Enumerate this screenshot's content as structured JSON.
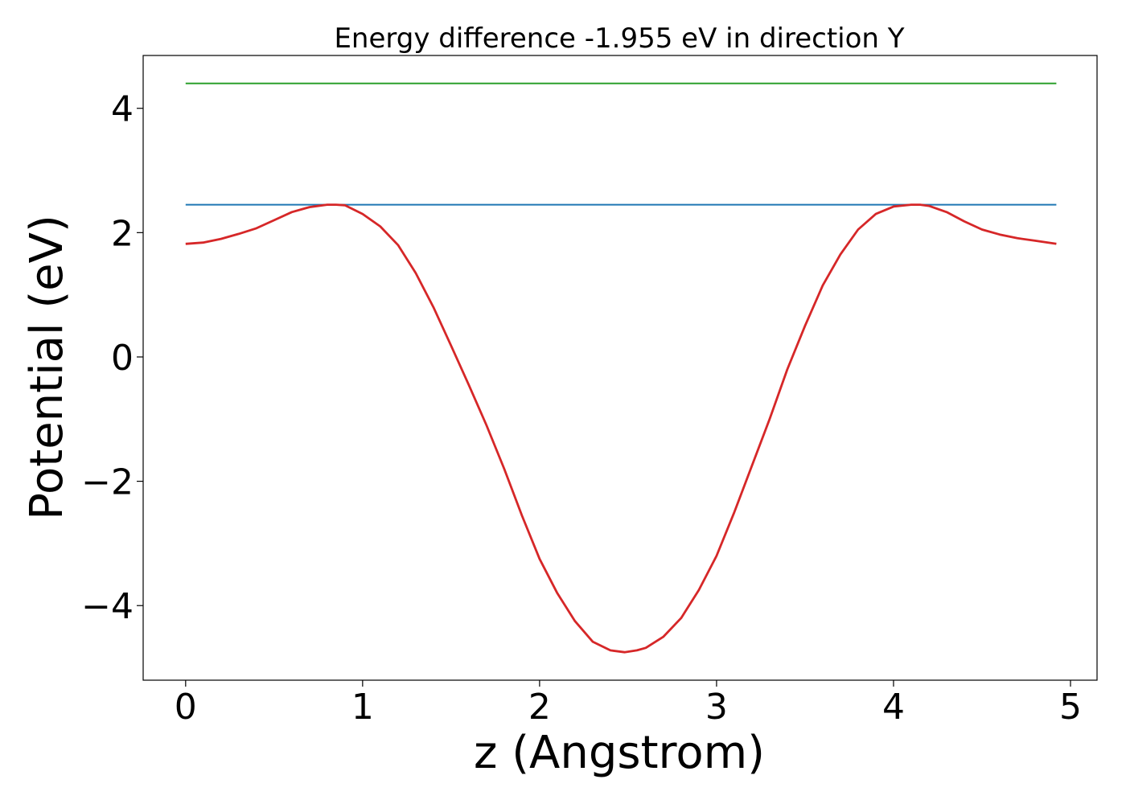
{
  "chart_data": {
    "type": "line",
    "title": "Energy difference -1.955 eV in direction Y",
    "xlabel": "z (Angstrom)",
    "ylabel": "Potential (eV)",
    "xlim": [
      -0.24,
      5.15
    ],
    "ylim": [
      -5.2,
      4.85
    ],
    "xticks": [
      0,
      1,
      2,
      3,
      4,
      5
    ],
    "xtick_labels": [
      "0",
      "1",
      "2",
      "3",
      "4",
      "5"
    ],
    "yticks": [
      -4,
      -2,
      0,
      2,
      4
    ],
    "ytick_labels": [
      "−4",
      "−2",
      "0",
      "2",
      "4"
    ],
    "grid": false,
    "series": [
      {
        "color": "#2ca02c",
        "x": [
          0,
          4.92
        ],
        "y": [
          4.4,
          4.4
        ]
      },
      {
        "color": "#1f77b4",
        "x": [
          0,
          4.92
        ],
        "y": [
          2.45,
          2.45
        ]
      },
      {
        "color": "#d62728",
        "x": [
          0.0,
          0.1,
          0.2,
          0.3,
          0.4,
          0.5,
          0.6,
          0.7,
          0.8,
          0.85,
          0.9,
          1.0,
          1.1,
          1.2,
          1.3,
          1.4,
          1.5,
          1.6,
          1.7,
          1.8,
          1.9,
          2.0,
          2.1,
          2.2,
          2.3,
          2.4,
          2.48,
          2.55,
          2.6,
          2.7,
          2.8,
          2.9,
          3.0,
          3.1,
          3.2,
          3.3,
          3.4,
          3.5,
          3.6,
          3.7,
          3.8,
          3.9,
          4.0,
          4.1,
          4.15,
          4.2,
          4.3,
          4.4,
          4.5,
          4.6,
          4.7,
          4.8,
          4.92
        ],
        "y": [
          1.82,
          1.84,
          1.9,
          1.98,
          2.07,
          2.2,
          2.33,
          2.41,
          2.45,
          2.45,
          2.44,
          2.3,
          2.1,
          1.8,
          1.35,
          0.8,
          0.18,
          -0.45,
          -1.1,
          -1.8,
          -2.55,
          -3.25,
          -3.8,
          -4.25,
          -4.58,
          -4.72,
          -4.75,
          -4.72,
          -4.68,
          -4.5,
          -4.2,
          -3.75,
          -3.2,
          -2.5,
          -1.75,
          -1.0,
          -0.2,
          0.5,
          1.15,
          1.65,
          2.05,
          2.3,
          2.42,
          2.45,
          2.45,
          2.43,
          2.33,
          2.18,
          2.05,
          1.97,
          1.91,
          1.87,
          1.82
        ]
      }
    ]
  }
}
